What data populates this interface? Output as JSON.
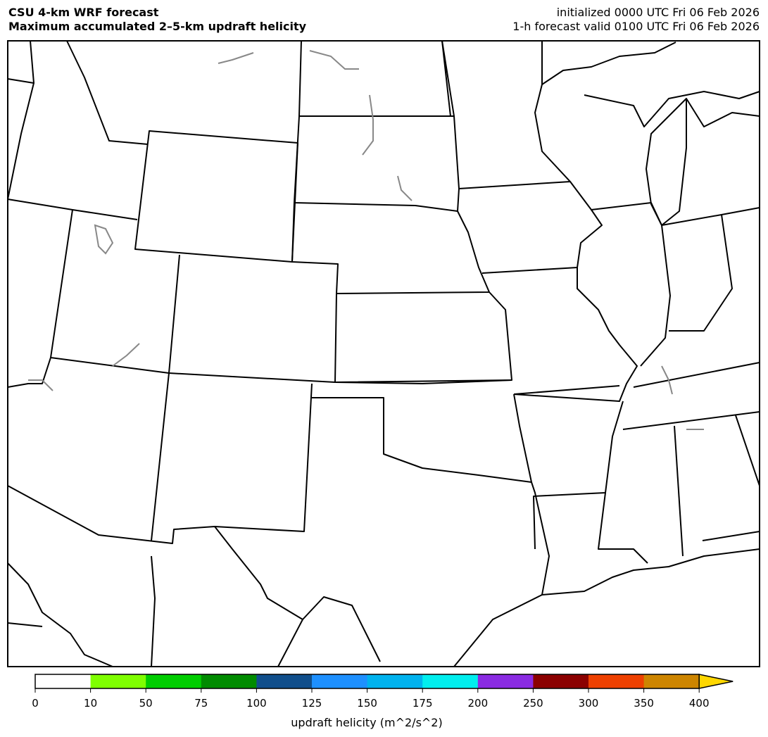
{
  "header": {
    "title": "CSU 4-km WRF forecast",
    "subtitle": "Maximum accumulated 2–5-km updraft helicity",
    "init": "initialized 0000 UTC Fri 06 Feb 2026",
    "valid": "1-h forecast valid 0100 UTC Fri 06 Feb 2026"
  },
  "colorbar": {
    "label": "updraft helicity (m^2/s^2)",
    "ticks": [
      "0",
      "10",
      "50",
      "75",
      "100",
      "125",
      "150",
      "175",
      "200",
      "250",
      "300",
      "350",
      "400"
    ],
    "colors": [
      "#ffffff",
      "#7fff00",
      "#00cd00",
      "#008b00",
      "#104e8b",
      "#1e90ff",
      "#00b2ee",
      "#00eeee",
      "#8a2be2",
      "#8b0000",
      "#ee4000",
      "#cd8500"
    ],
    "extend_color": "#ffd700"
  }
}
